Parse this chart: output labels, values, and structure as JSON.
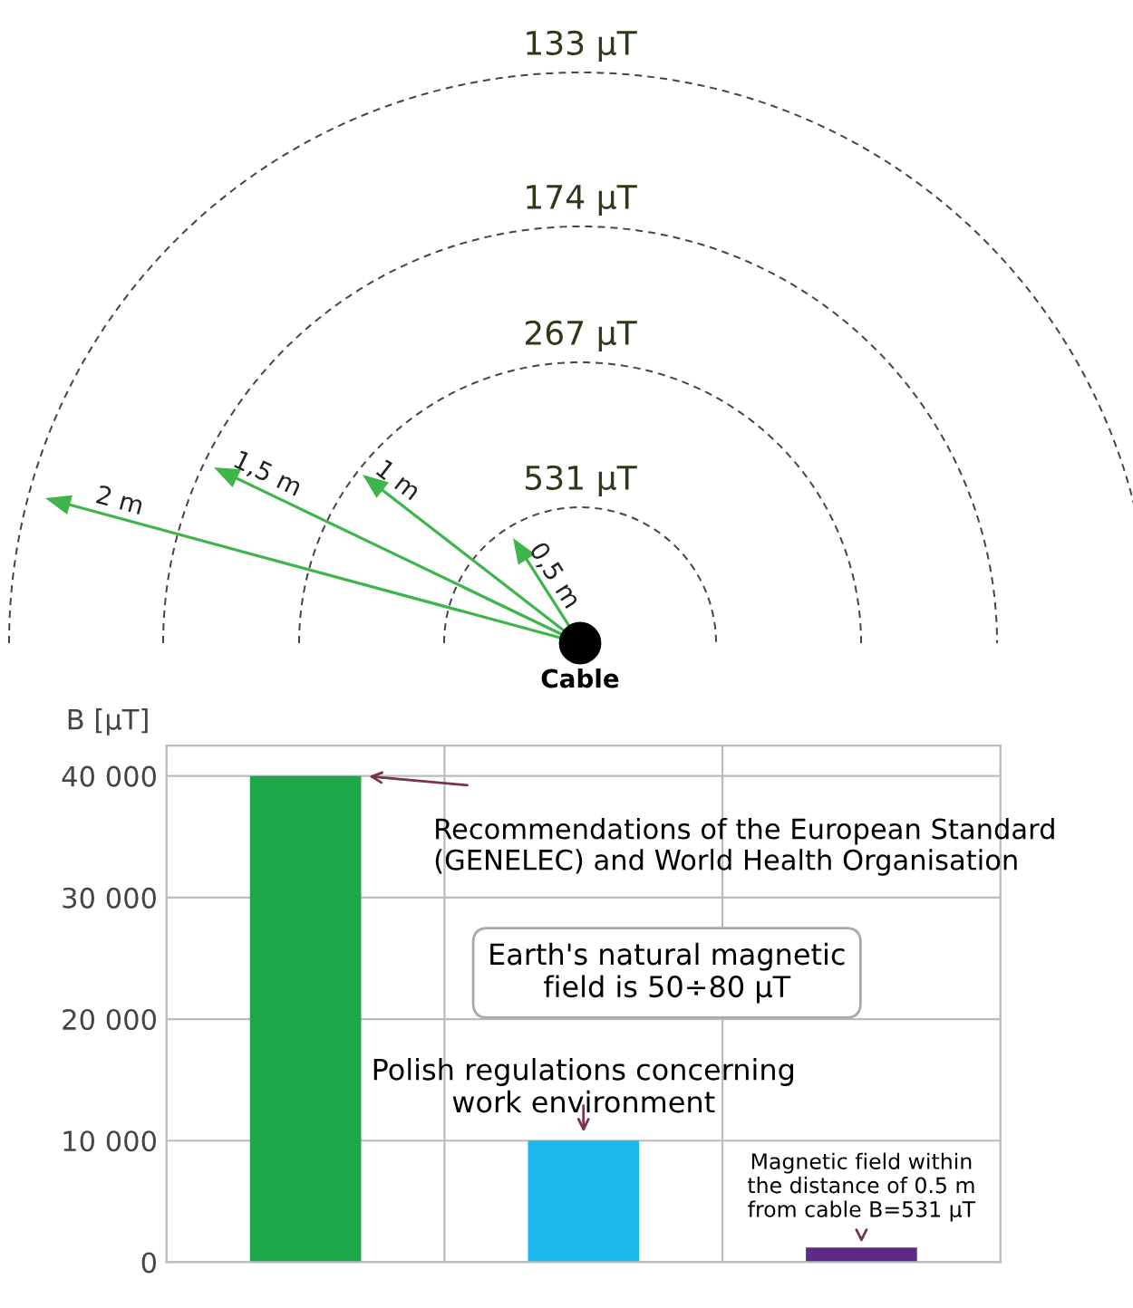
{
  "chart_data": [
    {
      "type": "other",
      "annotations": [
        "133 μT",
        "174 μT",
        "267 μT",
        "531 μT",
        "2 m",
        "1,5 m",
        "1 m",
        "0,5 m",
        "Cable"
      ]
    },
    {
      "type": "bar",
      "ylabel": "B [μT]",
      "categories": [
        null,
        null,
        null
      ],
      "values": [
        40000,
        10000,
        1200
      ],
      "colors": [
        "#1ea64a",
        "#1cb9ec",
        "#5e2a88"
      ],
      "ylim": [
        0,
        42500
      ],
      "yticks": [
        {
          "value": 0,
          "label": "0"
        },
        {
          "value": 10000,
          "label": "10 000"
        },
        {
          "value": 20000,
          "label": "20 000"
        },
        {
          "value": 30000,
          "label": "30 000"
        },
        {
          "value": 40000,
          "label": "40 000"
        }
      ],
      "grid": true,
      "annotations": [
        "Recommendations of the European Standard\n(GENELEC) and World Health Organisation",
        "Earth's natural magnetic\nfield is 50÷80 μT",
        {
          "text": "Polish regulations concerning\nwork environment",
          "y": 10000
        },
        {
          "text": "Magnetic field within\nthe distance of 0.5 m\nfrom cable B=531 μT",
          "y": 1200
        }
      ]
    }
  ]
}
